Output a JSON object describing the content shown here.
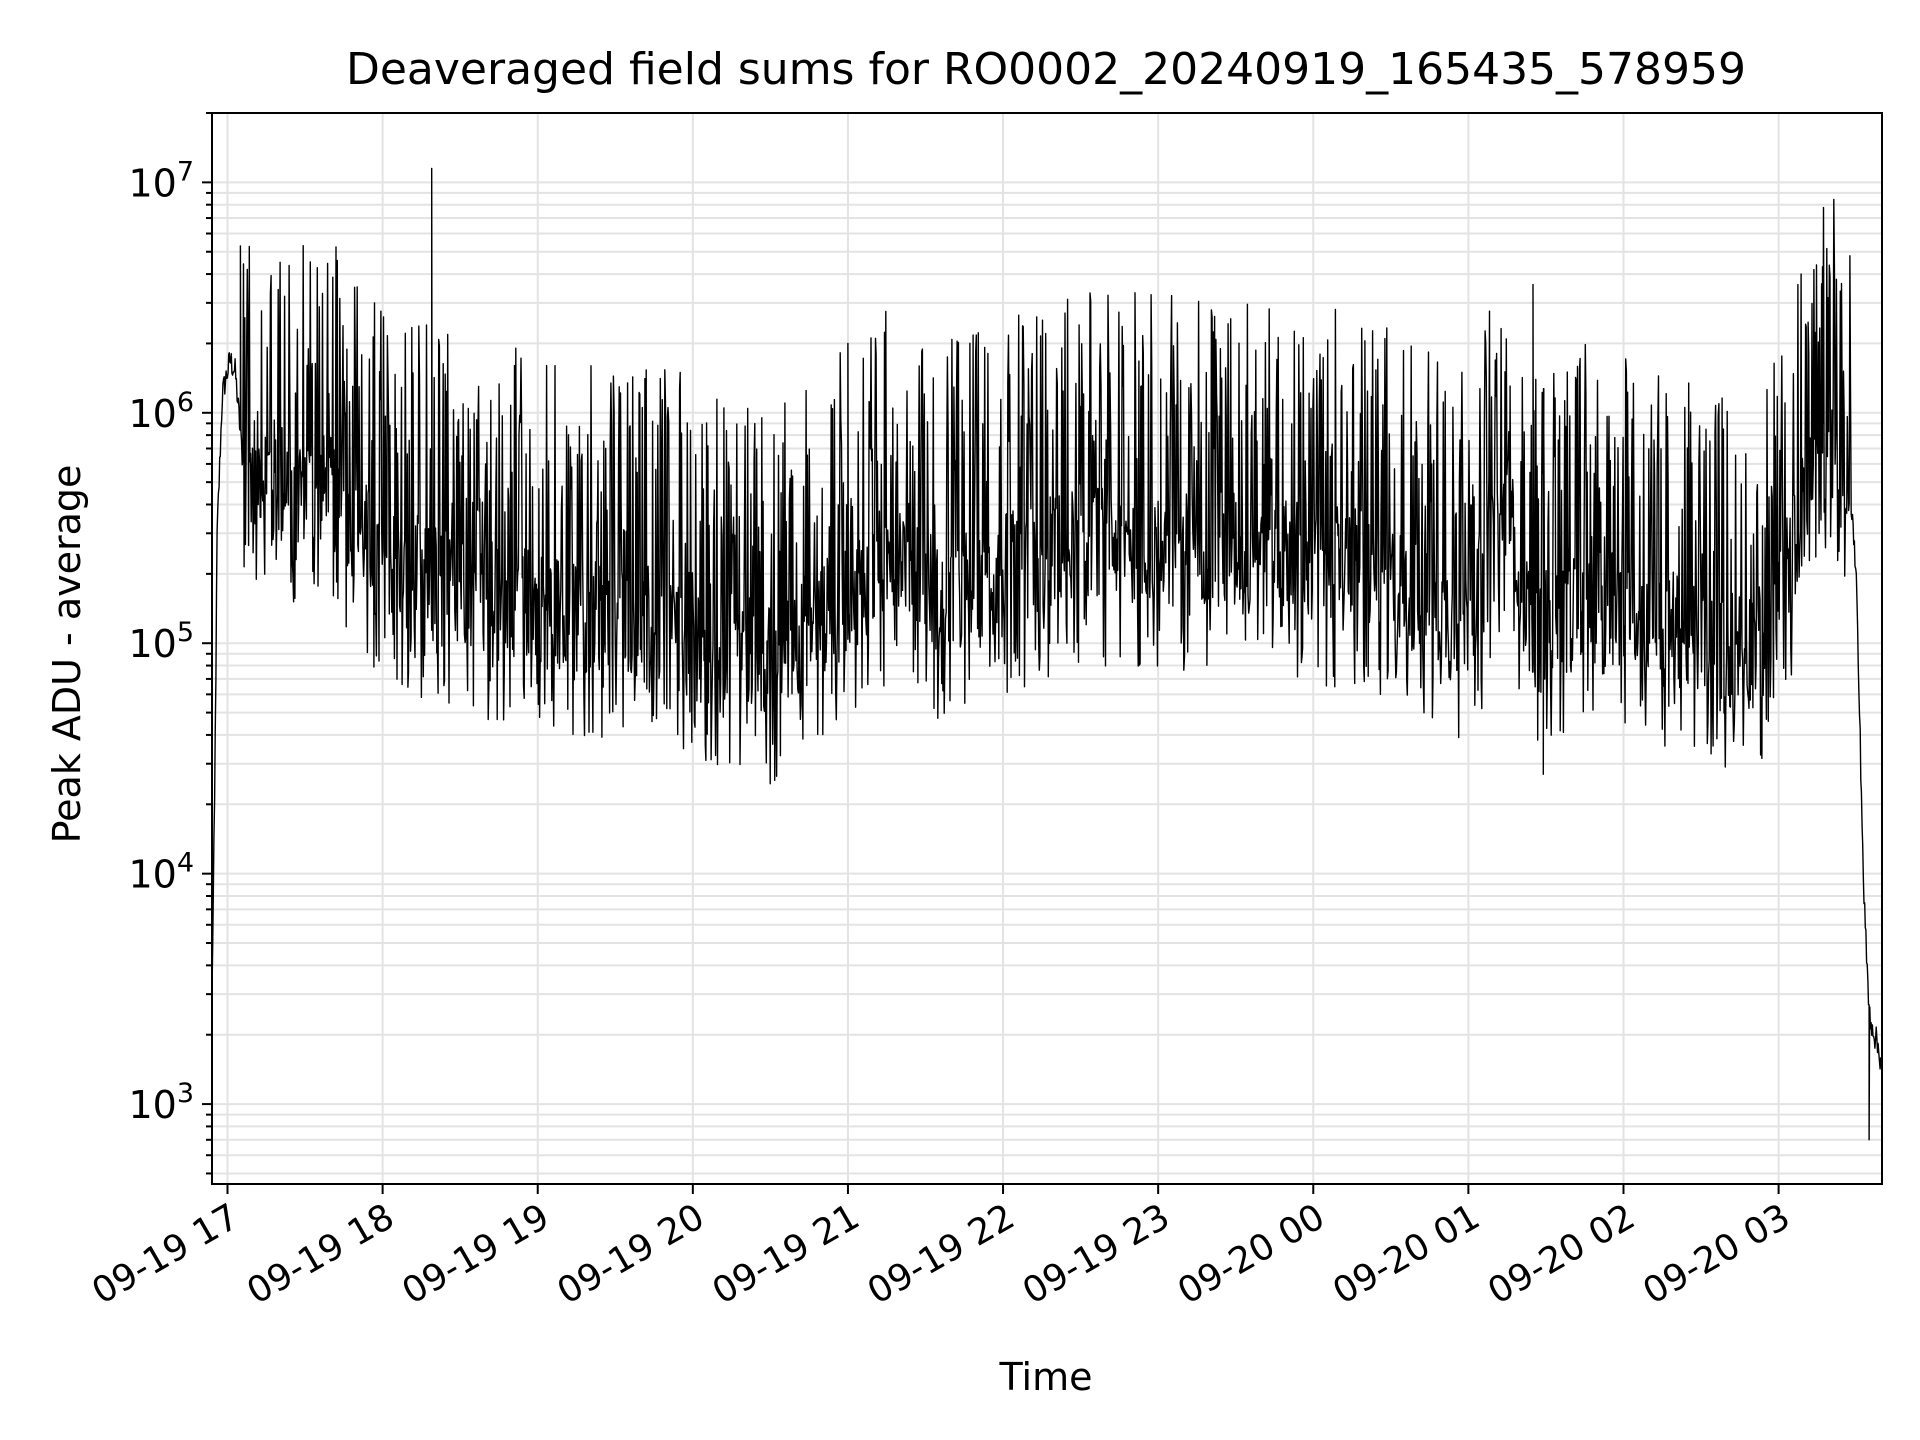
{
  "chart_data": {
    "type": "line",
    "title": "Deaveraged field sums for RO0002_20240919_165435_578959",
    "xlabel": "Time",
    "ylabel": "Peak ADU - average",
    "yscale": "log",
    "ylim": [
      450,
      20000000
    ],
    "xlim": [
      "2024-09-19 16:54",
      "2024-09-20 03:40"
    ],
    "grid": "major and minor, light gray",
    "line_color": "#000000",
    "x_ticks": [
      {
        "t": "2024-09-19 17:00",
        "label": "09-19 17"
      },
      {
        "t": "2024-09-19 18:00",
        "label": "09-19 18"
      },
      {
        "t": "2024-09-19 19:00",
        "label": "09-19 19"
      },
      {
        "t": "2024-09-19 20:00",
        "label": "09-19 20"
      },
      {
        "t": "2024-09-19 21:00",
        "label": "09-19 21"
      },
      {
        "t": "2024-09-19 22:00",
        "label": "09-19 22"
      },
      {
        "t": "2024-09-19 23:00",
        "label": "09-19 23"
      },
      {
        "t": "2024-09-20 00:00",
        "label": "09-20 00"
      },
      {
        "t": "2024-09-20 01:00",
        "label": "09-20 01"
      },
      {
        "t": "2024-09-20 02:00",
        "label": "09-20 02"
      },
      {
        "t": "2024-09-20 03:00",
        "label": "09-20 03"
      }
    ],
    "y_ticks": [
      {
        "value": 1000,
        "base": "10",
        "exp": "3"
      },
      {
        "value": 10000,
        "base": "10",
        "exp": "4"
      },
      {
        "value": 100000,
        "base": "10",
        "exp": "5"
      },
      {
        "value": 1000000,
        "base": "10",
        "exp": "6"
      },
      {
        "value": 10000000,
        "base": "10",
        "exp": "7"
      }
    ],
    "series": [
      {
        "profile": [
          {
            "t": "2024-09-19 16:54",
            "y": 3000
          },
          {
            "t": "2024-09-19 16:55",
            "y": 20000
          },
          {
            "t": "2024-09-19 16:56",
            "y": 300000
          },
          {
            "t": "2024-09-19 16:58",
            "y": 1200000
          },
          {
            "t": "2024-09-19 17:01",
            "y": 1700000
          },
          {
            "t": "2024-09-19 17:03",
            "y": 1500000
          },
          {
            "t": "2024-09-19 17:06",
            "y": 600000
          },
          {
            "t": "2024-09-19 17:40",
            "y": 450000
          },
          {
            "t": "2024-09-19 18:00",
            "y": 230000
          },
          {
            "t": "2024-09-19 18:40",
            "y": 160000
          },
          {
            "t": "2024-09-19 19:30",
            "y": 130000
          },
          {
            "t": "2024-09-19 19:55",
            "y": 120000
          },
          {
            "t": "2024-09-19 20:30",
            "y": 85000
          },
          {
            "t": "2024-09-19 21:00",
            "y": 160000
          },
          {
            "t": "2024-09-19 21:20",
            "y": 260000
          },
          {
            "t": "2024-09-19 21:35",
            "y": 160000
          },
          {
            "t": "2024-09-19 22:30",
            "y": 280000
          },
          {
            "t": "2024-09-19 23:30",
            "y": 260000
          },
          {
            "t": "2024-09-20 00:20",
            "y": 220000
          },
          {
            "t": "2024-09-20 01:00",
            "y": 120000
          },
          {
            "t": "2024-09-20 01:15",
            "y": 400000
          },
          {
            "t": "2024-09-20 01:25",
            "y": 110000
          },
          {
            "t": "2024-09-20 01:50",
            "y": 180000
          },
          {
            "t": "2024-09-20 02:30",
            "y": 100000
          },
          {
            "t": "2024-09-20 02:55",
            "y": 100000
          },
          {
            "t": "2024-09-20 03:10",
            "y": 400000
          },
          {
            "t": "2024-09-20 03:20",
            "y": 750000
          },
          {
            "t": "2024-09-20 03:27",
            "y": 600000
          },
          {
            "t": "2024-09-20 03:30",
            "y": 200000
          },
          {
            "t": "2024-09-20 03:33",
            "y": 8000
          },
          {
            "t": "2024-09-20 03:35",
            "y": 2500
          },
          {
            "t": "2024-09-20 03:40",
            "y": 1500
          }
        ],
        "spikes": [
          {
            "t": "2024-09-19 17:05",
            "y": 5300000
          },
          {
            "t": "2024-09-19 18:19",
            "y": 11500000
          },
          {
            "t": "2024-09-19 21:00",
            "y": 2000000
          },
          {
            "t": "2024-09-19 23:01",
            "y": 1400000
          },
          {
            "t": "2024-09-20 01:25",
            "y": 3600000
          },
          {
            "t": "2024-09-20 03:17",
            "y": 4300000
          },
          {
            "t": "2024-09-20 01:29",
            "y": 27000
          },
          {
            "t": "2024-09-20 03:35",
            "y": 700
          }
        ]
      }
    ]
  }
}
